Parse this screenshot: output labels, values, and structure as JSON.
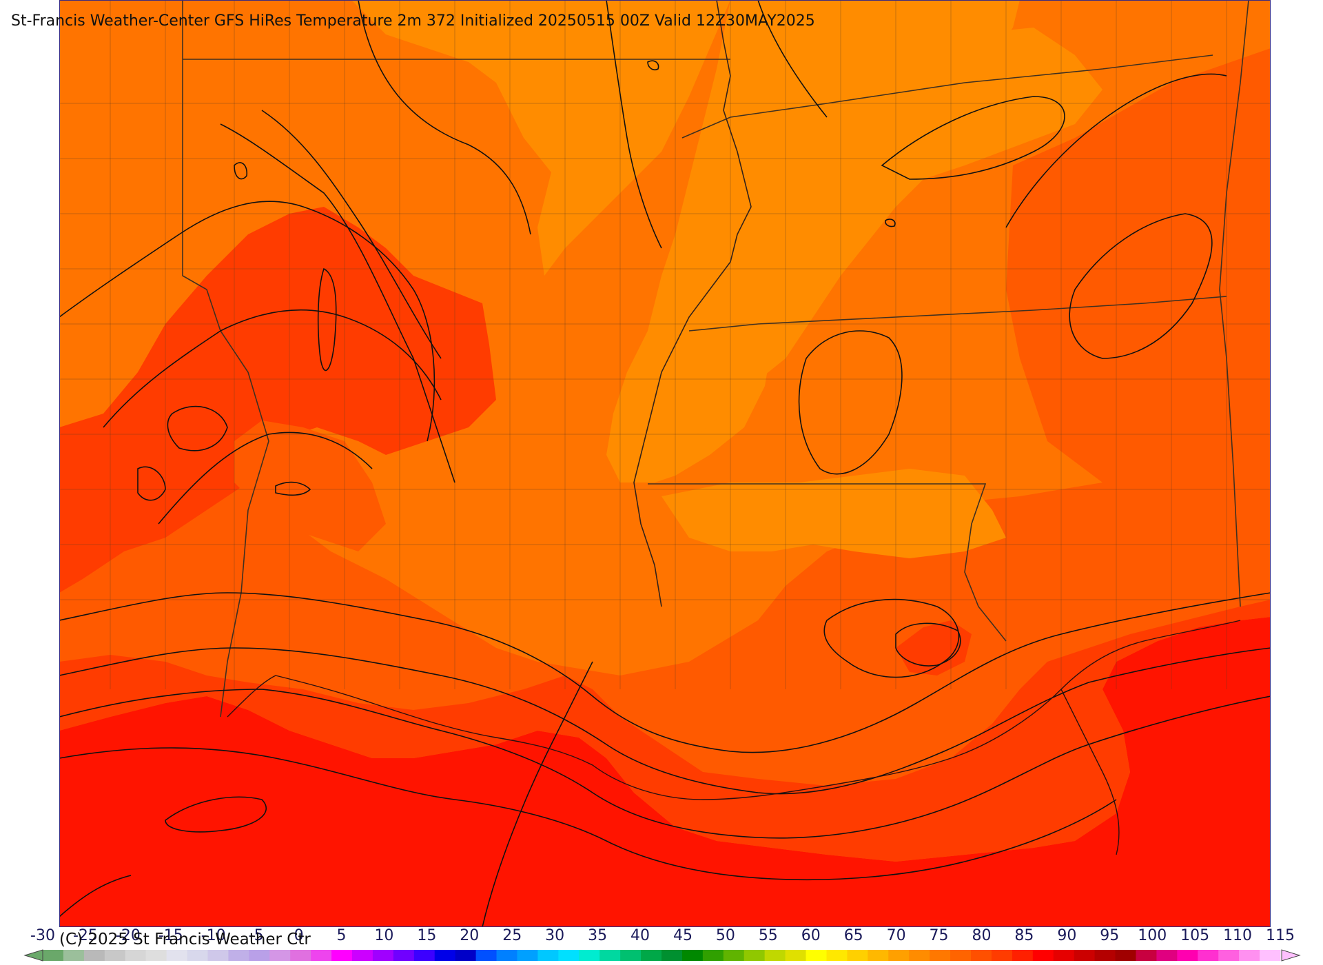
{
  "title": "St-Francis Weather-Center GFS HiRes Temperature 2m  372 Initialized 20250515 00Z Valid 12Z30MAY2025",
  "copyright": "(C) 2025 St Francis Weather Ctr",
  "colorbar": {
    "ticks": [
      "-30",
      "-25",
      "-20",
      "-15",
      "-10",
      "-5",
      "0",
      "5",
      "10",
      "15",
      "20",
      "25",
      "30",
      "35",
      "40",
      "45",
      "50",
      "55",
      "60",
      "65",
      "70",
      "75",
      "80",
      "85",
      "90",
      "95",
      "100",
      "105",
      "110",
      "115"
    ],
    "colors": [
      "#6aa86a",
      "#9bbf9b",
      "#b9b9b9",
      "#c8c8c8",
      "#d6d6d6",
      "#dedede",
      "#e2e2ee",
      "#d8d8ec",
      "#cfc8ea",
      "#c0b0e8",
      "#b9a0e8",
      "#d496e6",
      "#e070e0",
      "#ee44ee",
      "#ff00ff",
      "#cc00ff",
      "#a000ff",
      "#7000ff",
      "#3c00ff",
      "#0000e8",
      "#0000c8",
      "#0050ff",
      "#0080ff",
      "#00a0ff",
      "#00c8ff",
      "#00e0ff",
      "#00ecd0",
      "#00d8a0",
      "#00c070",
      "#00a848",
      "#009030",
      "#008800",
      "#30a000",
      "#60b400",
      "#90c800",
      "#c0d800",
      "#e0e000",
      "#ffff00",
      "#ffe800",
      "#ffd000",
      "#ffb800",
      "#ffa000",
      "#ff8c00",
      "#ff7800",
      "#ff6400",
      "#ff5000",
      "#ff3c00",
      "#ff2000",
      "#ff0000",
      "#e60000",
      "#cc0000",
      "#b40000",
      "#a00000",
      "#c80040",
      "#e00080",
      "#ff00b0",
      "#ff30d0",
      "#ff60e0",
      "#ff90f0",
      "#ffc0ff"
    ]
  },
  "legend_colors": {
    "t_70_75": "#ff8c00",
    "t_75_80": "#ff7400",
    "t_80_85": "#ff5a00",
    "t_85_90": "#ff3c00",
    "t_90_95": "#ff1400"
  }
}
